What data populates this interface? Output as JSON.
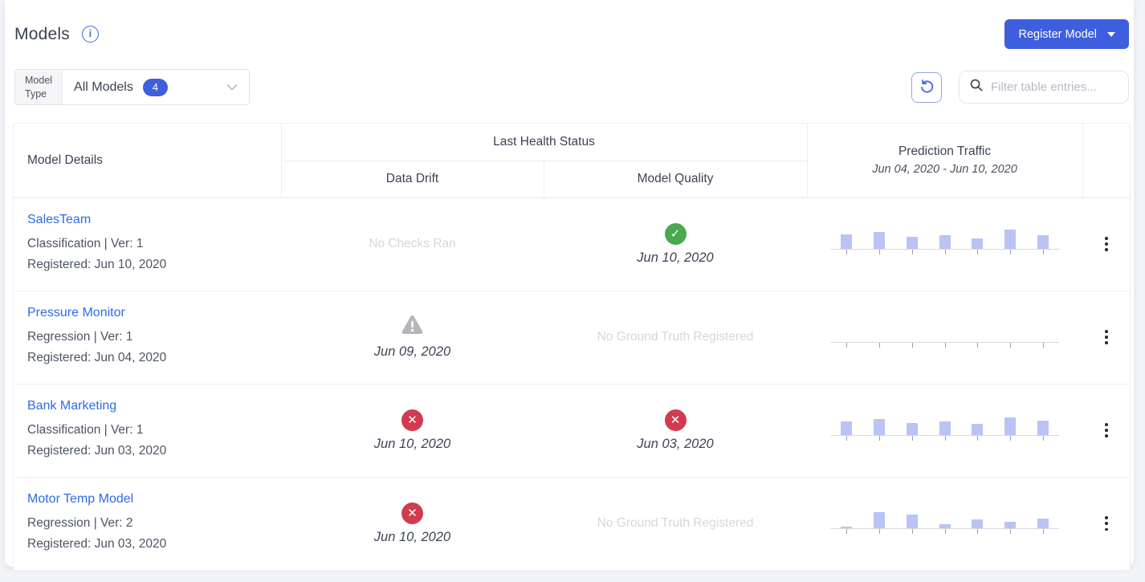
{
  "page": {
    "title": "Models",
    "register_button": {
      "label": "Register Model"
    },
    "filter": {
      "label": "Model Type",
      "value": "All Models",
      "count": "4"
    },
    "search": {
      "placeholder": "Filter table entries..."
    }
  },
  "icons": {
    "info_glyph": "i",
    "check_glyph": "✓",
    "x_glyph": "✕",
    "names": {
      "info": "info-icon",
      "dropdown_caret": "dropdown-caret-icon",
      "chevron_down": "chevron-down-icon",
      "refresh": "refresh-icon",
      "search": "search-icon",
      "pass": "pass-check-icon",
      "fail": "fail-x-icon",
      "warning": "warning-triangle-icon",
      "kebab": "kebab-menu-icon"
    }
  },
  "colors": {
    "accent_blue": "#3e5fdd",
    "link_blue": "#2e6be6",
    "success_green": "#49a850",
    "error_red": "#d23b4e",
    "warning_gray": "#b4b6ba",
    "traffic_bar": "#b9c3f4",
    "muted_text": "#d5d7dd"
  },
  "table": {
    "headers": {
      "model_details": "Model Details",
      "last_health_status": "Last Health Status",
      "data_drift": "Data Drift",
      "model_quality": "Model Quality",
      "prediction_traffic": "Prediction Traffic",
      "traffic_range": "Jun 04, 2020 - Jun 10, 2020"
    },
    "rows": [
      {
        "name": "SalesTeam",
        "type_line": "Classification | Ver: 1",
        "registered_line": "Registered: Jun 10, 2020",
        "data_drift": {
          "status": "none",
          "text": "No Checks Ran"
        },
        "model_quality": {
          "status": "pass",
          "date": "Jun 10, 2020"
        },
        "traffic": [
          18,
          21,
          15,
          17,
          13,
          24,
          17
        ]
      },
      {
        "name": "Pressure Monitor",
        "type_line": "Regression | Ver: 1",
        "registered_line": "Registered: Jun 04, 2020",
        "data_drift": {
          "status": "warning",
          "date": "Jun 09, 2020"
        },
        "model_quality": {
          "status": "none",
          "text": "No Ground Truth Registered"
        },
        "traffic": [
          0,
          0,
          0,
          0,
          0,
          0,
          0
        ]
      },
      {
        "name": "Bank Marketing",
        "type_line": "Classification | Ver: 1",
        "registered_line": "Registered: Jun 03, 2020",
        "data_drift": {
          "status": "fail",
          "date": "Jun 10, 2020"
        },
        "model_quality": {
          "status": "fail",
          "date": "Jun 03, 2020"
        },
        "traffic": [
          17,
          20,
          15,
          17,
          14,
          22,
          18
        ]
      },
      {
        "name": "Motor Temp Model",
        "type_line": "Regression | Ver: 2",
        "registered_line": "Registered: Jun 03, 2020",
        "data_drift": {
          "status": "fail",
          "date": "Jun 10, 2020"
        },
        "model_quality": {
          "status": "none",
          "text": "No Ground Truth Registered"
        },
        "traffic": [
          2,
          20,
          17,
          5,
          11,
          8,
          12
        ]
      }
    ]
  },
  "chart_data": {
    "type": "bar",
    "title": "Prediction Traffic",
    "x_range": "Jun 04, 2020 - Jun 10, 2020",
    "series": [
      {
        "name": "SalesTeam",
        "values": [
          18,
          21,
          15,
          17,
          13,
          24,
          17
        ]
      },
      {
        "name": "Pressure Monitor",
        "values": [
          0,
          0,
          0,
          0,
          0,
          0,
          0
        ]
      },
      {
        "name": "Bank Marketing",
        "values": [
          17,
          20,
          15,
          17,
          14,
          22,
          18
        ]
      },
      {
        "name": "Motor Temp Model",
        "values": [
          2,
          20,
          17,
          5,
          11,
          8,
          12
        ]
      }
    ]
  }
}
